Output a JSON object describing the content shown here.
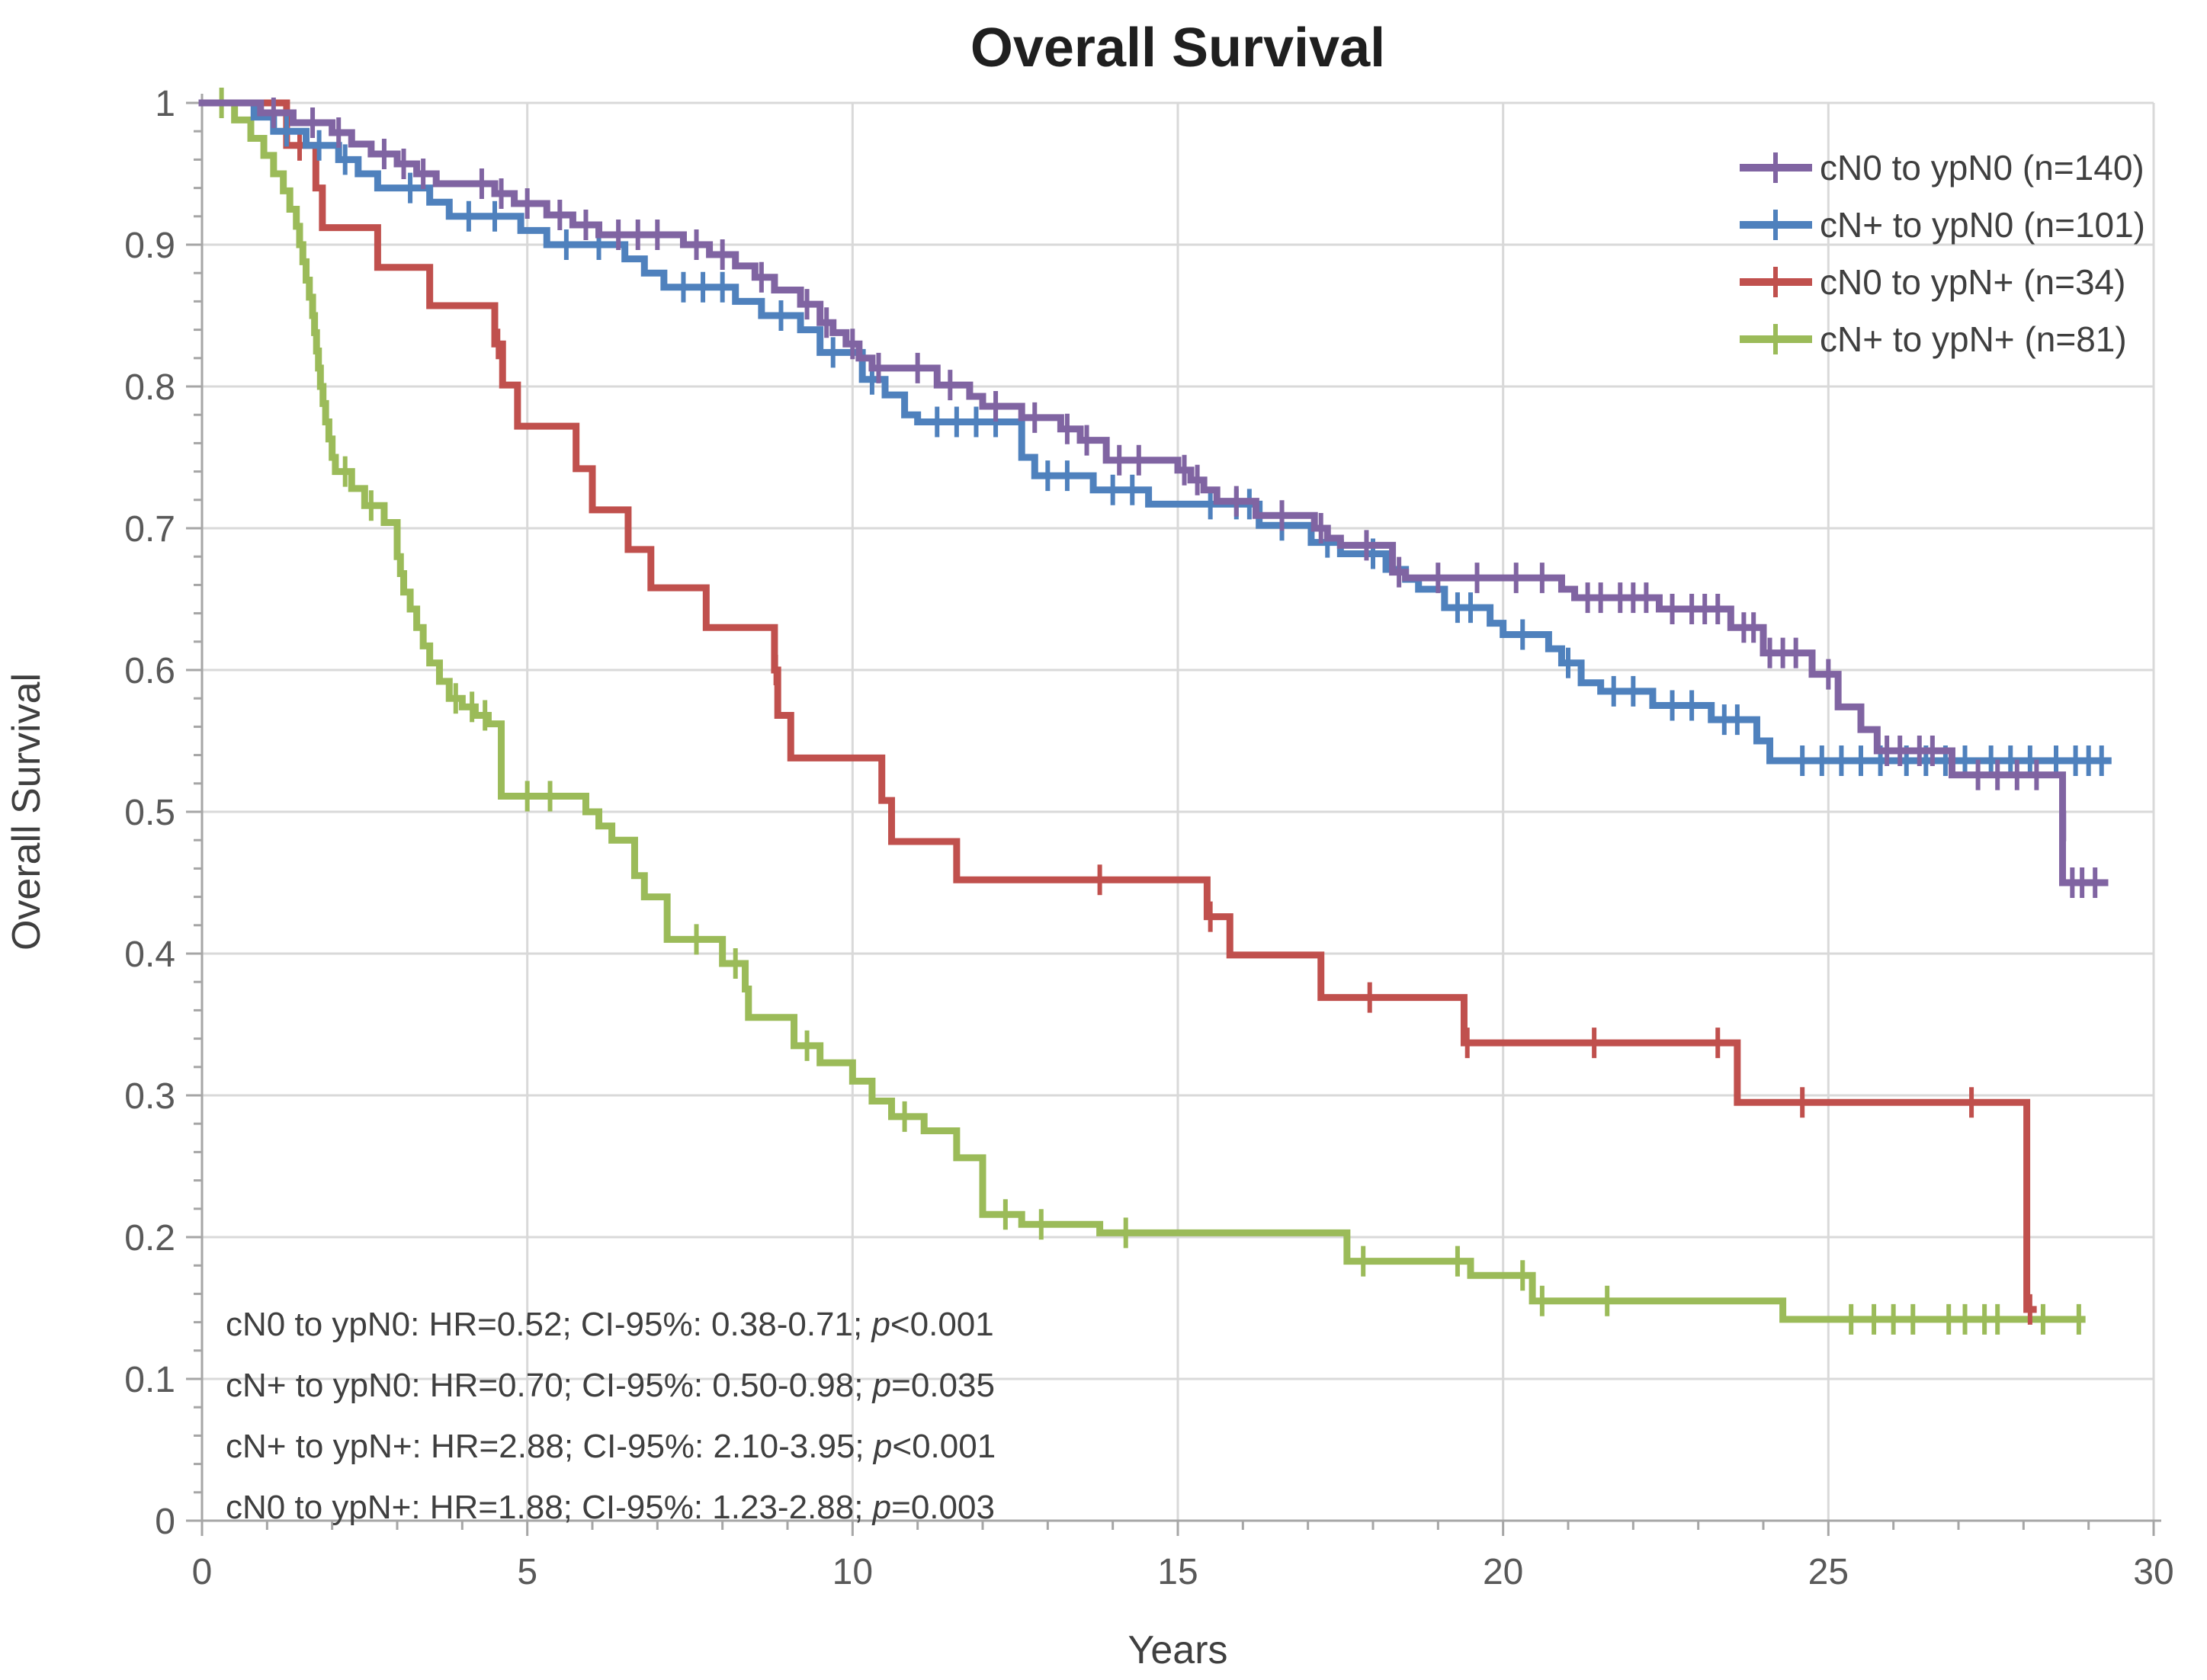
{
  "chart_data": {
    "type": "line",
    "subtype": "kaplan-meier-step",
    "title": "Overall Survival",
    "xlabel": "Years",
    "ylabel": "Overall Survival",
    "xlim": [
      0,
      30
    ],
    "ylim": [
      0,
      1
    ],
    "grid": true,
    "legend_position": "top-right",
    "x_axis": {
      "ticks": [
        0,
        5,
        10,
        15,
        20,
        25,
        30
      ],
      "minor_step": 1
    },
    "y_axis": {
      "ticks": [
        {
          "label": "1",
          "v": 1
        },
        {
          "label": "0.9",
          "v": 0.9
        },
        {
          "label": "0.8",
          "v": 0.8
        },
        {
          "label": "0.7",
          "v": 0.7
        },
        {
          "label": "0.6",
          "v": 0.6
        },
        {
          "label": "0.5",
          "v": 0.5
        },
        {
          "label": "0.4",
          "v": 0.4
        },
        {
          "label": "0.3",
          "v": 0.3
        },
        {
          "label": "0.2",
          "v": 0.2
        },
        {
          "label": "0.1",
          "v": 0.1
        },
        {
          "label": "0",
          "v": 0
        }
      ],
      "minor_step": 0.02
    },
    "colors": {
      "grid": "#D9D9D9",
      "axis": "#A6A6A6",
      "tick_label": "#595959",
      "text": "#3F3F3F",
      "title": "#1F1F1F"
    },
    "legend_order": [
      "cn0-to-ypn0",
      "cnpos-to-ypn0",
      "cn0-to-ypnpos",
      "cnpos-to-ypnpos"
    ],
    "draw_order": [
      "cnpos-to-ypnpos",
      "cn0-to-ypnpos",
      "cnpos-to-ypn0",
      "cn0-to-ypn0"
    ],
    "series": [
      {
        "key": "cn0-to-ypn0",
        "name": "cN0 to ypN0 (n=140)",
        "n": 140,
        "color": "#8064A2",
        "start": [
          0,
          1
        ],
        "end": 29.25,
        "steps": [
          [
            0.9,
            0.993
          ],
          [
            1.4,
            0.986
          ],
          [
            2.0,
            0.979
          ],
          [
            2.3,
            0.971
          ],
          [
            2.6,
            0.964
          ],
          [
            3.0,
            0.957
          ],
          [
            3.3,
            0.95
          ],
          [
            3.6,
            0.943
          ],
          [
            4.5,
            0.936
          ],
          [
            4.8,
            0.929
          ],
          [
            5.3,
            0.921
          ],
          [
            5.7,
            0.914
          ],
          [
            6.1,
            0.907
          ],
          [
            7.4,
            0.9
          ],
          [
            7.8,
            0.893
          ],
          [
            8.2,
            0.885
          ],
          [
            8.5,
            0.877
          ],
          [
            8.8,
            0.868
          ],
          [
            9.2,
            0.858
          ],
          [
            9.5,
            0.845
          ],
          [
            9.7,
            0.838
          ],
          [
            9.9,
            0.83
          ],
          [
            10.1,
            0.82
          ],
          [
            10.3,
            0.813
          ],
          [
            11.3,
            0.801
          ],
          [
            11.8,
            0.793
          ],
          [
            12.0,
            0.786
          ],
          [
            12.6,
            0.778
          ],
          [
            13.2,
            0.77
          ],
          [
            13.5,
            0.762
          ],
          [
            13.9,
            0.748
          ],
          [
            15.0,
            0.741
          ],
          [
            15.2,
            0.734
          ],
          [
            15.4,
            0.727
          ],
          [
            15.6,
            0.719
          ],
          [
            16.2,
            0.709
          ],
          [
            17.1,
            0.7
          ],
          [
            17.3,
            0.693
          ],
          [
            17.5,
            0.688
          ],
          [
            18.3,
            0.669
          ],
          [
            18.5,
            0.665
          ],
          [
            20.9,
            0.657
          ],
          [
            21.1,
            0.651
          ],
          [
            22.4,
            0.643
          ],
          [
            23.5,
            0.63
          ],
          [
            24.0,
            0.612
          ],
          [
            24.75,
            0.597
          ],
          [
            25.15,
            0.574
          ],
          [
            25.5,
            0.558
          ],
          [
            25.75,
            0.543
          ],
          [
            26.9,
            0.526
          ],
          [
            28.6,
            0.45
          ]
        ],
        "censors": [
          1.1,
          1.7,
          2.1,
          2.8,
          3.1,
          3.4,
          4.3,
          4.6,
          5.0,
          5.5,
          5.9,
          6.4,
          6.7,
          7.0,
          7.6,
          8.0,
          8.6,
          9.3,
          9.6,
          10.0,
          10.4,
          11.0,
          11.5,
          12.2,
          12.8,
          13.3,
          13.6,
          14.1,
          14.4,
          15.1,
          15.3,
          15.9,
          16.6,
          17.2,
          17.9,
          18.4,
          19.0,
          19.6,
          20.2,
          20.6,
          21.3,
          21.5,
          21.8,
          22.0,
          22.2,
          22.6,
          22.9,
          23.1,
          23.3,
          23.7,
          23.85,
          24.1,
          24.3,
          24.5,
          25.0,
          25.9,
          26.1,
          26.4,
          26.6,
          27.3,
          27.6,
          27.9,
          28.2,
          [
            28.62,
            0.49
          ],
          28.75,
          28.9,
          29.1
        ]
      },
      {
        "key": "cnpos-to-ypn0",
        "name": "cN+ to ypN0 (n=101)",
        "n": 101,
        "color": "#4F81BD",
        "start": [
          0,
          1
        ],
        "end": 29.3,
        "steps": [
          [
            0.8,
            0.99
          ],
          [
            1.1,
            0.98
          ],
          [
            1.6,
            0.97
          ],
          [
            2.1,
            0.96
          ],
          [
            2.4,
            0.95
          ],
          [
            2.7,
            0.94
          ],
          [
            3.5,
            0.93
          ],
          [
            3.8,
            0.92
          ],
          [
            4.9,
            0.91
          ],
          [
            5.3,
            0.9
          ],
          [
            6.5,
            0.89
          ],
          [
            6.8,
            0.88
          ],
          [
            7.1,
            0.87
          ],
          [
            8.2,
            0.86
          ],
          [
            8.6,
            0.85
          ],
          [
            9.2,
            0.84
          ],
          [
            9.5,
            0.824
          ],
          [
            10.15,
            0.805
          ],
          [
            10.5,
            0.794
          ],
          [
            10.8,
            0.78
          ],
          [
            11.0,
            0.775
          ],
          [
            12.6,
            0.75
          ],
          [
            12.8,
            0.737
          ],
          [
            13.7,
            0.727
          ],
          [
            14.55,
            0.717
          ],
          [
            16.25,
            0.702
          ],
          [
            17.05,
            0.69
          ],
          [
            17.5,
            0.682
          ],
          [
            18.2,
            0.671
          ],
          [
            18.5,
            0.664
          ],
          [
            18.7,
            0.657
          ],
          [
            19.1,
            0.644
          ],
          [
            19.8,
            0.633
          ],
          [
            20.0,
            0.625
          ],
          [
            20.7,
            0.615
          ],
          [
            20.9,
            0.605
          ],
          [
            21.2,
            0.591
          ],
          [
            21.5,
            0.585
          ],
          [
            22.3,
            0.575
          ],
          [
            23.2,
            0.565
          ],
          [
            23.9,
            0.55
          ],
          [
            24.1,
            0.536
          ]
        ],
        "censors": [
          1.3,
          1.8,
          2.2,
          3.2,
          4.1,
          4.5,
          5.6,
          6.1,
          7.4,
          7.7,
          8.0,
          8.9,
          9.7,
          10.3,
          11.3,
          11.6,
          11.9,
          12.2,
          13.0,
          13.3,
          14.0,
          14.3,
          15.5,
          15.9,
          16.1,
          16.6,
          17.3,
          18.0,
          19.3,
          19.5,
          20.3,
          21.0,
          21.7,
          22.0,
          22.6,
          22.9,
          23.4,
          23.6,
          24.6,
          24.9,
          25.2,
          25.5,
          25.8,
          26.2,
          26.5,
          26.8,
          27.1,
          27.5,
          27.8,
          28.1,
          28.5,
          28.8,
          29.0,
          29.2
        ]
      },
      {
        "key": "cn0-to-ypnpos",
        "name": "cN0 to ypN+ (n=34)",
        "n": 34,
        "color": "#C0504D",
        "start": [
          0,
          1
        ],
        "end": 28.15,
        "steps": [
          [
            1.3,
            0.97
          ],
          [
            1.75,
            0.94
          ],
          [
            1.85,
            0.912
          ],
          [
            2.7,
            0.884
          ],
          [
            3.5,
            0.857
          ],
          [
            4.5,
            0.83
          ],
          [
            4.62,
            0.801
          ],
          [
            4.85,
            0.772
          ],
          [
            5.75,
            0.742
          ],
          [
            6.0,
            0.713
          ],
          [
            6.55,
            0.685
          ],
          [
            6.9,
            0.658
          ],
          [
            7.75,
            0.63
          ],
          [
            8.8,
            0.6
          ],
          [
            8.85,
            0.568
          ],
          [
            9.05,
            0.538
          ],
          [
            10.45,
            0.508
          ],
          [
            10.6,
            0.479
          ],
          [
            11.6,
            0.452
          ],
          [
            15.45,
            0.426
          ],
          [
            15.8,
            0.399
          ],
          [
            17.2,
            0.369
          ],
          [
            19.4,
            0.337
          ],
          [
            23.6,
            0.295
          ],
          [
            28.05,
            0.149
          ]
        ],
        "censors": [
          1.5,
          4.55,
          8.82,
          13.8,
          15.5,
          17.95,
          19.45,
          21.4,
          23.3,
          24.6,
          27.2,
          28.1
        ]
      },
      {
        "key": "cnpos-to-ypnpos",
        "name": "cN+ to ypN+ (n=81)",
        "n": 81,
        "color": "#9BBB59",
        "start": [
          0,
          1
        ],
        "end": 28.9,
        "steps": [
          [
            0.5,
            0.988
          ],
          [
            0.75,
            0.975
          ],
          [
            0.95,
            0.963
          ],
          [
            1.1,
            0.95
          ],
          [
            1.25,
            0.938
          ],
          [
            1.35,
            0.925
          ],
          [
            1.45,
            0.913
          ],
          [
            1.5,
            0.9
          ],
          [
            1.55,
            0.888
          ],
          [
            1.6,
            0.875
          ],
          [
            1.65,
            0.863
          ],
          [
            1.7,
            0.85
          ],
          [
            1.73,
            0.838
          ],
          [
            1.76,
            0.825
          ],
          [
            1.79,
            0.813
          ],
          [
            1.82,
            0.8
          ],
          [
            1.86,
            0.788
          ],
          [
            1.9,
            0.775
          ],
          [
            1.95,
            0.763
          ],
          [
            2.0,
            0.75
          ],
          [
            2.05,
            0.74
          ],
          [
            2.3,
            0.728
          ],
          [
            2.5,
            0.716
          ],
          [
            2.8,
            0.704
          ],
          [
            3.0,
            0.68
          ],
          [
            3.05,
            0.668
          ],
          [
            3.1,
            0.655
          ],
          [
            3.2,
            0.643
          ],
          [
            3.3,
            0.63
          ],
          [
            3.4,
            0.617
          ],
          [
            3.5,
            0.605
          ],
          [
            3.65,
            0.592
          ],
          [
            3.8,
            0.58
          ],
          [
            4.0,
            0.574
          ],
          [
            4.2,
            0.568
          ],
          [
            4.4,
            0.562
          ],
          [
            4.6,
            0.511
          ],
          [
            5.9,
            0.5
          ],
          [
            6.1,
            0.49
          ],
          [
            6.3,
            0.48
          ],
          [
            6.65,
            0.455
          ],
          [
            6.8,
            0.44
          ],
          [
            7.15,
            0.41
          ],
          [
            8.0,
            0.393
          ],
          [
            8.35,
            0.375
          ],
          [
            8.4,
            0.355
          ],
          [
            9.1,
            0.335
          ],
          [
            9.5,
            0.323
          ],
          [
            10.0,
            0.31
          ],
          [
            10.3,
            0.296
          ],
          [
            10.6,
            0.285
          ],
          [
            11.1,
            0.275
          ],
          [
            11.6,
            0.256
          ],
          [
            12.0,
            0.216
          ],
          [
            12.6,
            0.209
          ],
          [
            13.8,
            0.203
          ],
          [
            17.6,
            0.183
          ],
          [
            19.5,
            0.173
          ],
          [
            20.45,
            0.155
          ],
          [
            24.3,
            0.142
          ]
        ],
        "censors": [
          0.3,
          2.2,
          2.6,
          3.9,
          4.15,
          4.35,
          5.0,
          5.35,
          7.6,
          8.2,
          9.3,
          10.8,
          12.35,
          12.9,
          14.2,
          17.85,
          19.3,
          20.3,
          20.6,
          21.6,
          25.35,
          25.7,
          26.0,
          26.3,
          26.85,
          27.1,
          27.4,
          27.6,
          28.3,
          28.85
        ]
      }
    ],
    "annotations": [
      {
        "before": "cN0 to ypN0: HR=0.52; CI-95%: 0.38-0.71; ",
        "p": "p",
        "after": "<0.001"
      },
      {
        "before": "cN+ to ypN0: HR=0.70; CI-95%: 0.50-0.98; ",
        "p": "p",
        "after": "=0.035"
      },
      {
        "before": "cN+ to ypN+: HR=2.88; CI-95%: 2.10-3.95; ",
        "p": "p",
        "after": "<0.001"
      },
      {
        "before": "cN0 to ypN+: HR=1.88; CI-95%: 1.23-2.88; ",
        "p": "p",
        "after": "=0.003"
      }
    ]
  }
}
